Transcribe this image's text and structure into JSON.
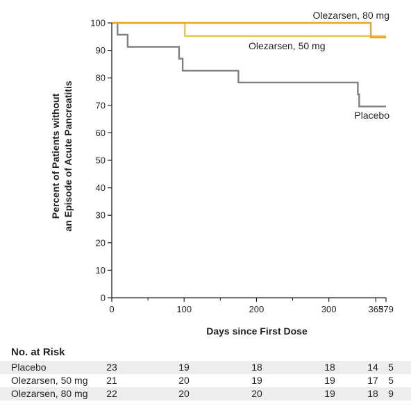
{
  "chart_data": {
    "type": "line",
    "step": true,
    "title": "",
    "xlabel": "Days since First Dose",
    "ylabel": [
      "Percent of Patients without",
      "an Episode of Acute Pancreatitis"
    ],
    "xlim": [
      0,
      379
    ],
    "ylim": [
      0,
      100
    ],
    "xticks": [
      0,
      100,
      200,
      300,
      365,
      379
    ],
    "yticks": [
      0,
      10,
      20,
      30,
      40,
      50,
      60,
      70,
      80,
      90,
      100
    ],
    "grid": false,
    "series": [
      {
        "name": "Placebo",
        "color": "#808080",
        "x": [
          0,
          8,
          8,
          22,
          22,
          93,
          93,
          98,
          98,
          100,
          100,
          175,
          175,
          340,
          340,
          342,
          342,
          379
        ],
        "y": [
          100,
          100,
          95.7,
          95.7,
          91.3,
          91.3,
          87,
          87,
          82.6,
          82.6,
          82.6,
          82.6,
          78.3,
          78.3,
          74,
          74,
          69.6,
          69.6
        ]
      },
      {
        "name": "Olezarsen, 50 mg",
        "color": "#e8c64a",
        "x": [
          0,
          101,
          101,
          379
        ],
        "y": [
          100,
          100,
          95.2,
          95.2
        ]
      },
      {
        "name": "Olezarsen, 80 mg",
        "color": "#e0a534",
        "x": [
          0,
          358,
          358,
          379
        ],
        "y": [
          100,
          100,
          94.7,
          94.7
        ]
      }
    ]
  },
  "risk_table": {
    "title": "No. at Risk",
    "days": [
      0,
      100,
      200,
      300,
      365,
      379
    ],
    "rows": [
      {
        "label": "Placebo",
        "values": [
          "23",
          "19",
          "18",
          "18",
          "14",
          "5"
        ]
      },
      {
        "label": "Olezarsen, 50 mg",
        "values": [
          "21",
          "20",
          "19",
          "19",
          "17",
          "5"
        ]
      },
      {
        "label": "Olezarsen, 80 mg",
        "values": [
          "22",
          "20",
          "20",
          "19",
          "18",
          "9"
        ]
      }
    ]
  }
}
